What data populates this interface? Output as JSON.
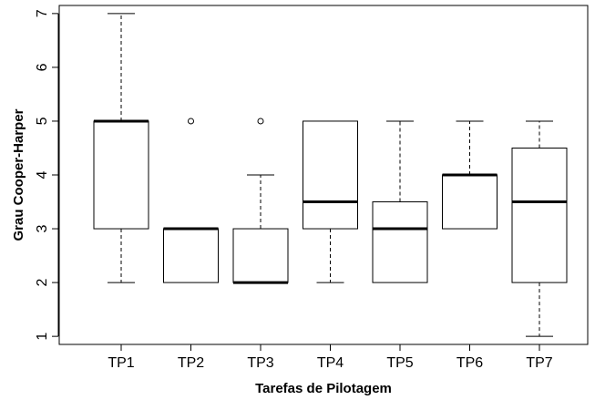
{
  "chart_data": {
    "type": "boxplot",
    "title": "",
    "xlabel": "Tarefas de Pilotagem",
    "ylabel": "Grau Cooper-Harper",
    "ylim": [
      0.85,
      7.15
    ],
    "yticks": [
      1,
      2,
      3,
      4,
      5,
      6,
      7
    ],
    "grid": false,
    "legend": "none",
    "categories": [
      "TP1",
      "TP2",
      "TP3",
      "TP4",
      "TP5",
      "TP6",
      "TP7"
    ],
    "boxes": [
      {
        "name": "TP1",
        "whisker_low": 2,
        "q1": 3,
        "median": 5,
        "q3": 5,
        "whisker_high": 7,
        "outliers": []
      },
      {
        "name": "TP2",
        "whisker_low": 2,
        "q1": 2,
        "median": 3,
        "q3": 3,
        "whisker_high": 3,
        "outliers": [
          5
        ]
      },
      {
        "name": "TP3",
        "whisker_low": 2,
        "q1": 2,
        "median": 2,
        "q3": 3,
        "whisker_high": 4,
        "outliers": [
          5
        ]
      },
      {
        "name": "TP4",
        "whisker_low": 2,
        "q1": 3,
        "median": 3.5,
        "q3": 5,
        "whisker_high": 5,
        "outliers": []
      },
      {
        "name": "TP5",
        "whisker_low": 2,
        "q1": 2,
        "median": 3,
        "q3": 3.5,
        "whisker_high": 5,
        "outliers": []
      },
      {
        "name": "TP6",
        "whisker_low": 3,
        "q1": 3,
        "median": 4,
        "q3": 4,
        "whisker_high": 5,
        "outliers": []
      },
      {
        "name": "TP7",
        "whisker_low": 1,
        "q1": 2,
        "median": 3.5,
        "q3": 4.5,
        "whisker_high": 5,
        "outliers": []
      }
    ],
    "colors": {
      "box_fill": "#ffffff",
      "stroke": "#000000"
    }
  }
}
